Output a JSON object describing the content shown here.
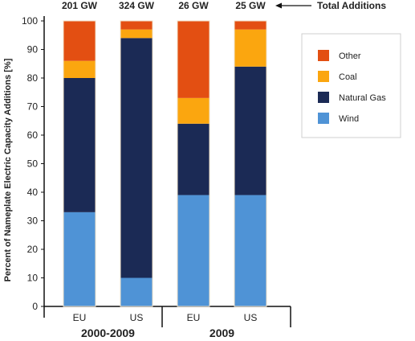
{
  "chart_data": {
    "type": "bar",
    "stacked": true,
    "ylabel": "Percent of Nameplate Electric Capacity Additions [%]",
    "ylim": [
      0,
      100
    ],
    "yticks": [
      0,
      10,
      20,
      30,
      40,
      50,
      60,
      70,
      80,
      90,
      100
    ],
    "categories": [
      "EU",
      "US",
      "EU",
      "US"
    ],
    "groups": [
      {
        "label": "2000-2009",
        "categories": [
          0,
          1
        ]
      },
      {
        "label": "2009",
        "categories": [
          2,
          3
        ]
      }
    ],
    "totals": [
      "201 GW",
      "324 GW",
      "26 GW",
      "25 GW"
    ],
    "totals_label": "Total Additions",
    "series": [
      {
        "name": "Wind",
        "color": "#4f93d6",
        "values": [
          33,
          10,
          39,
          39
        ]
      },
      {
        "name": "Natural Gas",
        "color": "#1b2a55",
        "values": [
          47,
          84,
          25,
          45
        ]
      },
      {
        "name": "Coal",
        "color": "#fba60f",
        "values": [
          6,
          3,
          9,
          13
        ]
      },
      {
        "name": "Other",
        "color": "#e34f12",
        "values": [
          14,
          3,
          27,
          3
        ]
      }
    ],
    "legend": {
      "position": "top-right",
      "order": [
        "Other",
        "Coal",
        "Natural Gas",
        "Wind"
      ]
    },
    "grid": false
  }
}
